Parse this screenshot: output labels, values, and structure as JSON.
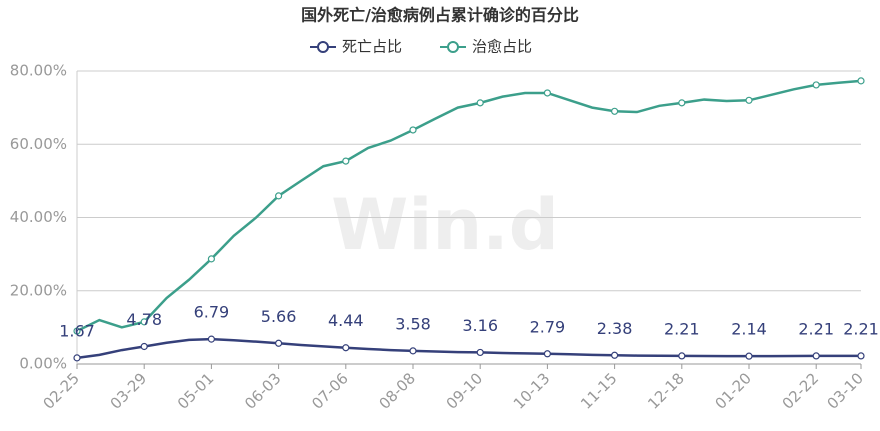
{
  "chart_data": {
    "type": "line",
    "title": "国外死亡/治愈病例占累计确诊的百分比",
    "watermark": "Win.d",
    "categories": [
      "02-25",
      null,
      null,
      "03-29",
      null,
      null,
      "05-01",
      null,
      null,
      "06-03",
      null,
      null,
      "07-06",
      null,
      null,
      "08-08",
      null,
      null,
      "09-10",
      null,
      null,
      "10-13",
      null,
      null,
      "11-15",
      null,
      null,
      "12-18",
      null,
      null,
      "01-20",
      null,
      null,
      "02-22",
      null,
      "03-10"
    ],
    "series": [
      {
        "name": "死亡占比",
        "color": "#35407a",
        "values": [
          1.67,
          2.5,
          3.8,
          4.78,
          5.8,
          6.6,
          6.79,
          6.5,
          6.1,
          5.66,
          5.2,
          4.8,
          4.44,
          4.1,
          3.8,
          3.58,
          3.4,
          3.25,
          3.16,
          3.0,
          2.9,
          2.79,
          2.65,
          2.5,
          2.38,
          2.3,
          2.25,
          2.21,
          2.18,
          2.15,
          2.14,
          2.16,
          2.19,
          2.21,
          2.21,
          2.21
        ]
      },
      {
        "name": "治愈占比",
        "color": "#3c9f8b",
        "values": [
          9,
          12,
          10,
          11.5,
          18,
          23,
          28.7,
          35,
          40,
          45.9,
          50,
          54,
          55.4,
          59,
          61,
          63.9,
          67,
          70,
          71.3,
          73,
          74,
          74,
          72,
          70,
          69,
          68.8,
          70.5,
          71.3,
          72.2,
          71.8,
          72,
          73.5,
          75,
          76.2,
          76.8,
          77.3
        ]
      }
    ],
    "ylim": [
      0,
      80
    ],
    "yticks": [
      {
        "value": 0,
        "label": "0.00%"
      },
      {
        "value": 20,
        "label": "20.00%"
      },
      {
        "value": 40,
        "label": "40.00%"
      },
      {
        "value": 60,
        "label": "60.00%"
      },
      {
        "value": 80,
        "label": "80.00%"
      }
    ],
    "grid": true,
    "legend": "top"
  }
}
